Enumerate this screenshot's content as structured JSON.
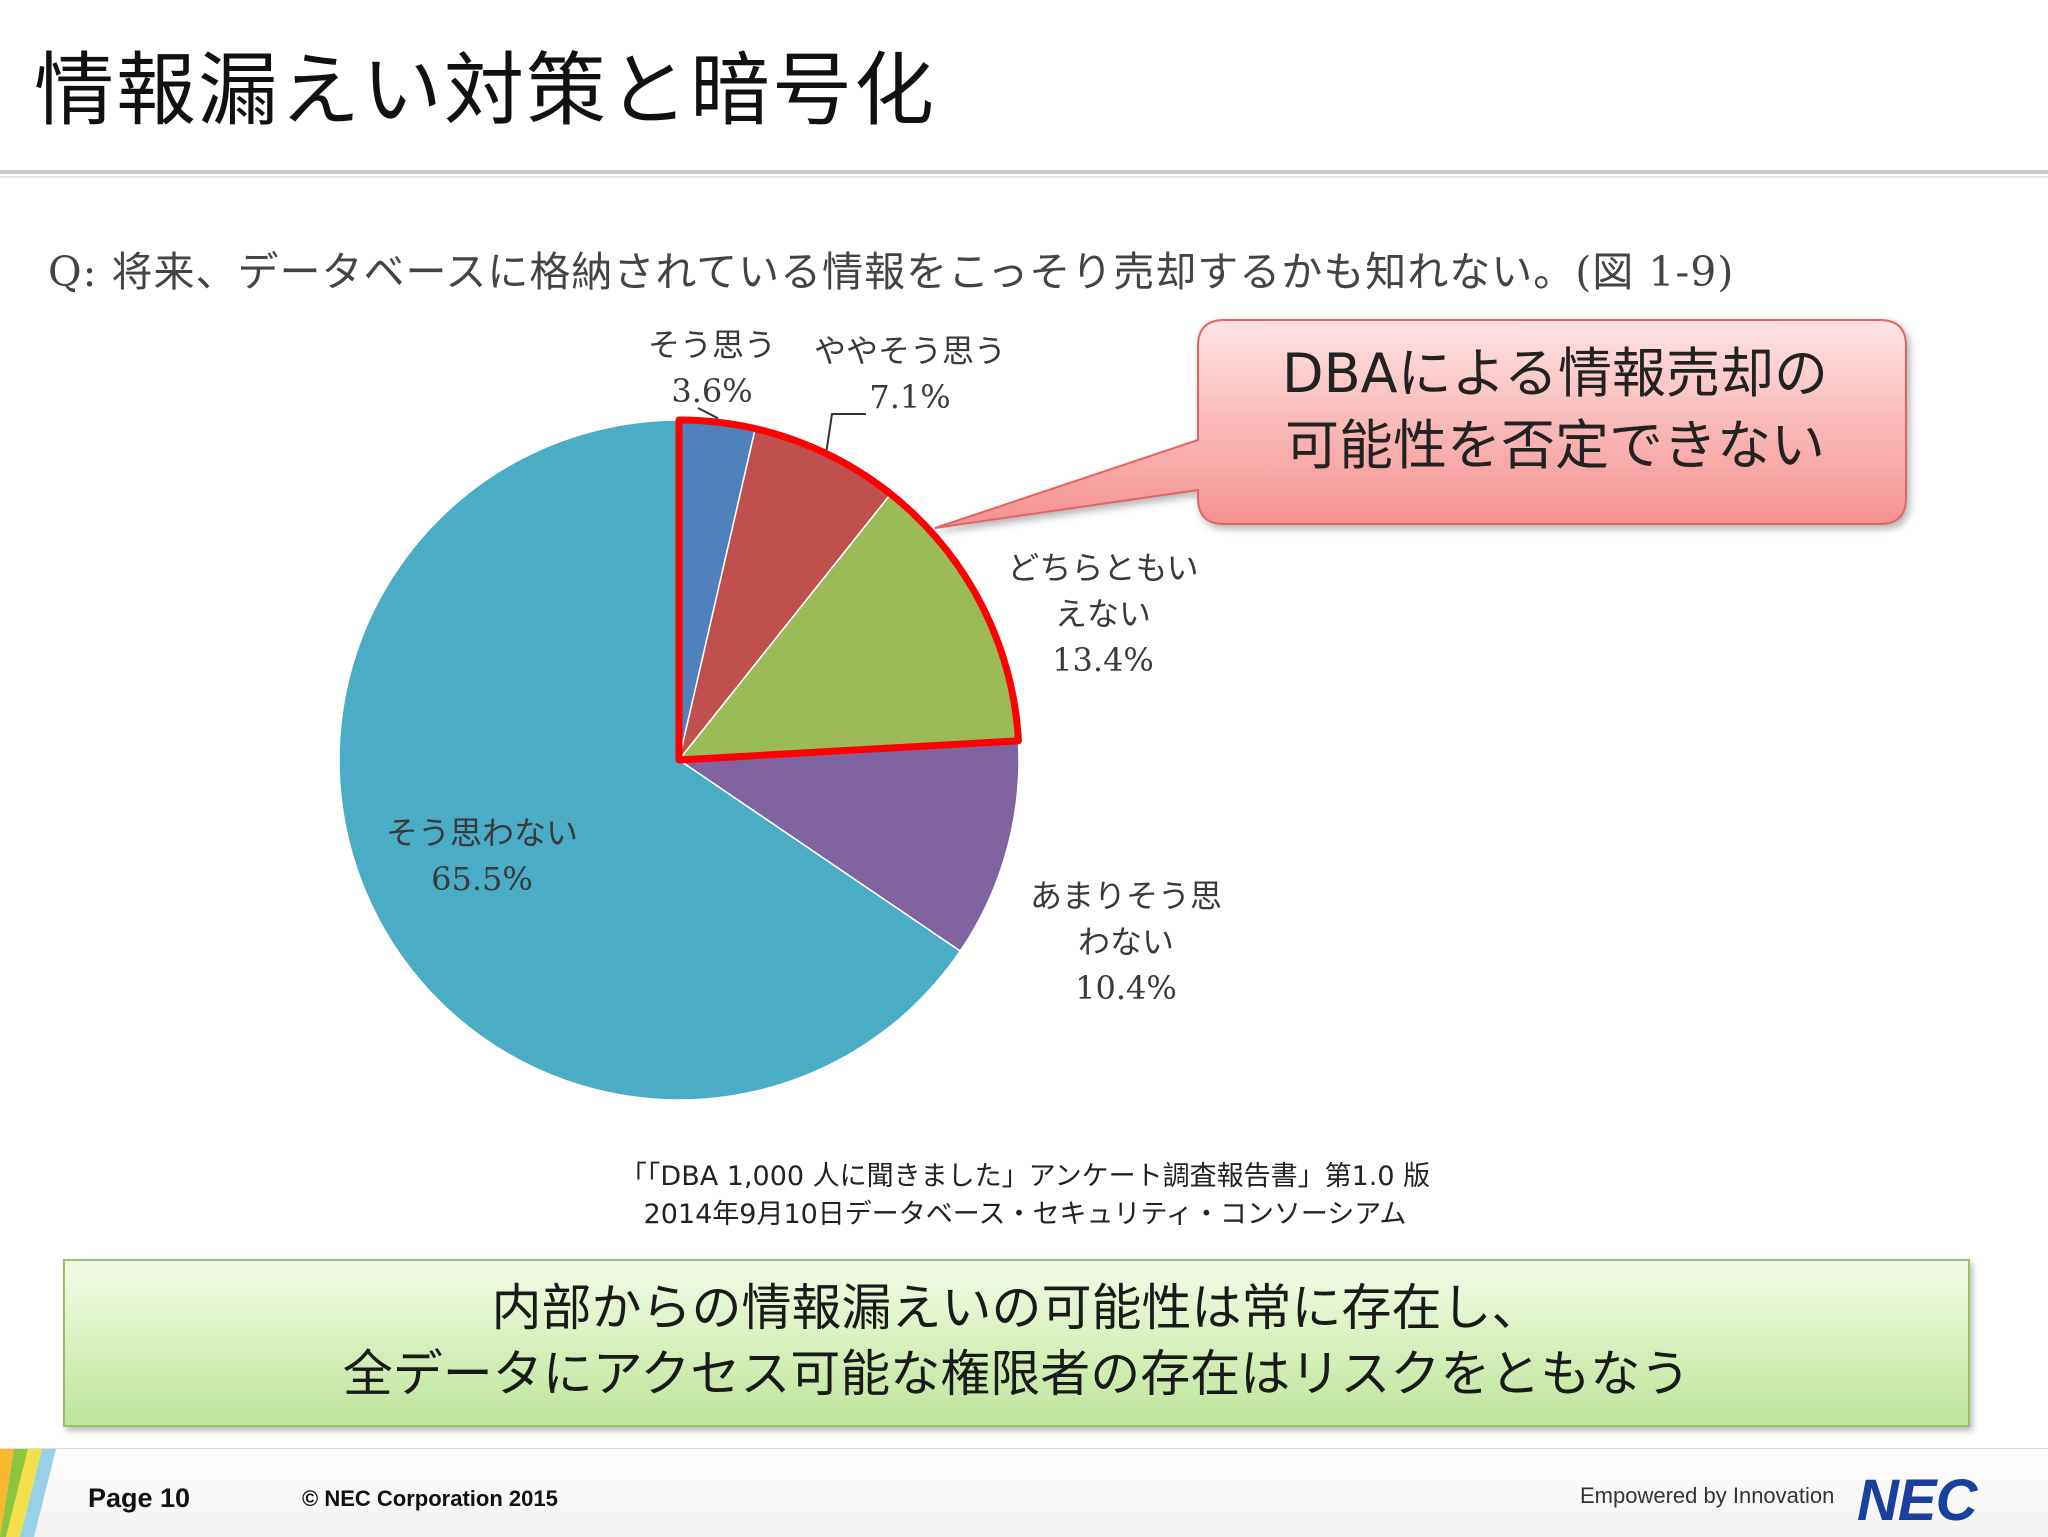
{
  "slide": {
    "title": "情報漏えい対策と暗号化"
  },
  "chart": {
    "question": "Q: 将来、データベースに格納されている情報をこっそり売却するかも知れない。(図 1-9)"
  },
  "chart_data": {
    "type": "pie",
    "title": "",
    "categories": [
      "そう思う",
      "ややそう思う",
      "どちらともいえない",
      "あまりそう思わない",
      "そう思わない"
    ],
    "values": [
      3.6,
      7.1,
      13.4,
      10.4,
      65.5
    ],
    "value_labels": [
      "3.6%",
      "7.1%",
      "13.4%",
      "10.4%",
      "65.5%"
    ],
    "label_lines": [
      [
        "そう思う"
      ],
      [
        "ややそう思う"
      ],
      [
        "どちらともい",
        "えない"
      ],
      [
        "あまりそう思",
        "わない"
      ],
      [
        "そう思わない"
      ]
    ],
    "colors": [
      "#4f81bd",
      "#c0504d",
      "#9bbb59",
      "#8064a2",
      "#4bacc6"
    ],
    "start_angle_deg": 0,
    "direction": "clockwise",
    "highlight": {
      "indices": [
        0,
        1,
        2
      ],
      "outline_color": "#ff0000"
    }
  },
  "callout": {
    "line1": "DBAによる情報売却の",
    "line2": "可能性を否定できない",
    "fill_top": "#fde3e3",
    "fill_bottom": "#f58f8f",
    "border": "#e06666"
  },
  "source": {
    "line1": "「「DBA 1,000 人に聞きました」アンケート調査報告書」第1.0 版",
    "line2": "2014年9月10日データベース・セキュリティ・コンソーシアム"
  },
  "conclusion": {
    "line1": "内部からの情報漏えいの可能性は常に存在し、",
    "line2": "全データにアクセス可能な権限者の存在はリスクをともなう"
  },
  "footer": {
    "page": "Page 10",
    "copyright": "© NEC Corporation 2015",
    "tagline": "Empowered by Innovation",
    "logo": "NEC"
  }
}
